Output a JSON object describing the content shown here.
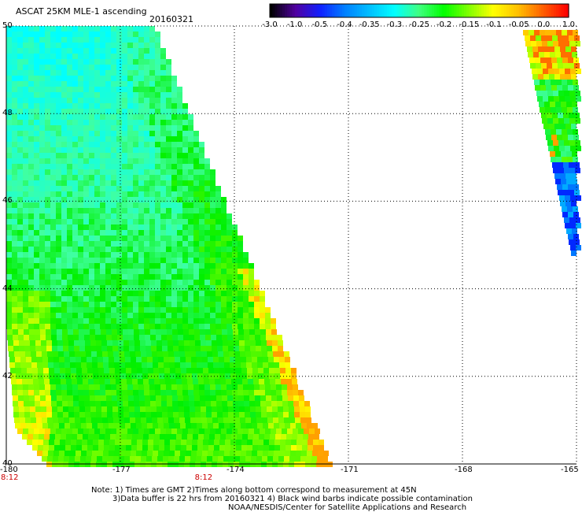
{
  "header": {
    "title": "ASCAT 25KM MLE-1 ascending",
    "date": "20160321"
  },
  "colorbar": {
    "labels": [
      "-3.0",
      "-1.0",
      "-0.5",
      "-0.4",
      "-0.35",
      "-0.3",
      "-0.25",
      "-0.2",
      "-0.15",
      "-0.1",
      "-0.05",
      "0.0",
      "1.0"
    ],
    "colors": [
      "#000000",
      "#5000a0",
      "#1020ff",
      "#0080ff",
      "#00c0ff",
      "#00ffff",
      "#40ff80",
      "#00ff00",
      "#80ff00",
      "#ffff00",
      "#ffc000",
      "#ff6000",
      "#ff0000"
    ]
  },
  "map": {
    "lon_range": [
      -180,
      -165
    ],
    "lat_range": [
      40,
      50
    ],
    "lon_ticks": [
      "-180",
      "-177",
      "-174",
      "-171",
      "-168",
      "-165"
    ],
    "lat_ticks": [
      "50",
      "48",
      "46",
      "44",
      "42",
      "40"
    ],
    "grid": true,
    "time_labels": [
      "8:12",
      "8:12"
    ],
    "time_label_lons": [
      -180,
      -175
    ]
  },
  "notes": {
    "line1": "Note: 1) Times are GMT 2)Times along bottom correspond to measurement at 45N",
    "line2": "3)Data buffer is 22 hrs from 20160321 4) Black wind barbs indicate possible contamination",
    "line3": "NOAA/NESDIS/Center for Satellite Applications and Research"
  }
}
